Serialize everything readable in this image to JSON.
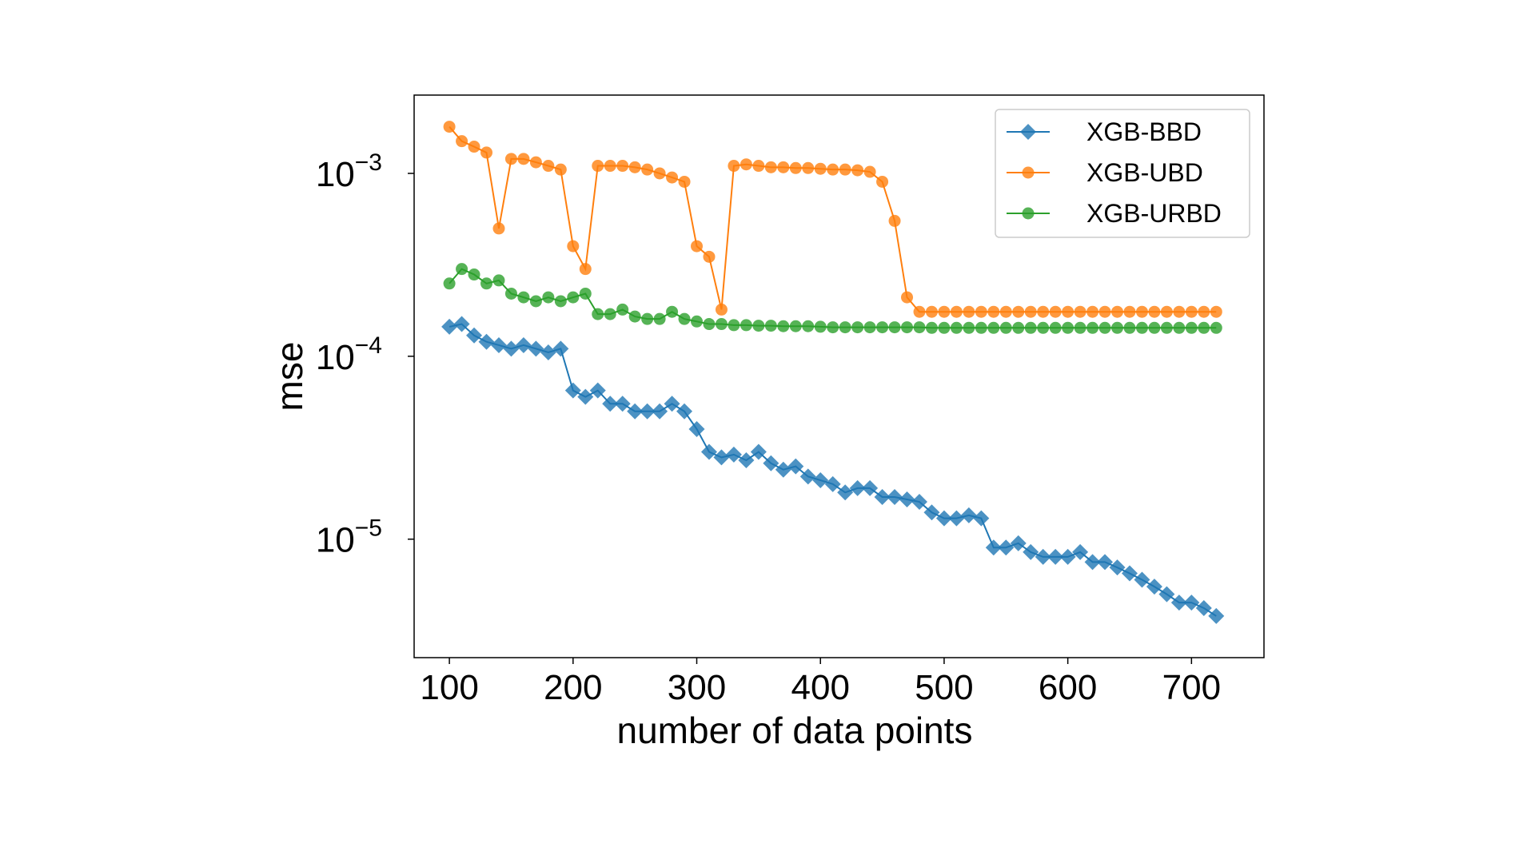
{
  "chart_data": {
    "type": "line",
    "xlabel": "number of data points",
    "ylabel": "mse",
    "log_y": true,
    "legend_position": "upper right",
    "xlim": [
      71.5,
      758.6
    ],
    "xticks": [
      100,
      200,
      300,
      400,
      500,
      600,
      700
    ],
    "ylim": [
      2.25e-06,
      0.00268
    ],
    "yticks": [
      {
        "value": 0.001,
        "label": "10",
        "exponent": "−3"
      },
      {
        "value": 0.0001,
        "label": "10",
        "exponent": "−4"
      },
      {
        "value": 1e-05,
        "label": "10",
        "exponent": "−5"
      }
    ],
    "x": [
      100,
      110,
      120,
      130,
      140,
      150,
      160,
      170,
      180,
      190,
      200,
      210,
      220,
      230,
      240,
      250,
      260,
      270,
      280,
      290,
      300,
      310,
      320,
      330,
      340,
      350,
      360,
      370,
      380,
      390,
      400,
      410,
      420,
      430,
      440,
      450,
      460,
      470,
      480,
      490,
      500,
      510,
      520,
      530,
      540,
      550,
      560,
      570,
      580,
      590,
      600,
      610,
      620,
      630,
      640,
      650,
      660,
      670,
      680,
      690,
      700,
      710,
      720
    ],
    "series": [
      {
        "name": "XGB-BBD",
        "color": "#1f77b4",
        "marker": "diamond",
        "values": [
          0.000145,
          0.00015,
          0.00013,
          0.00012,
          0.000115,
          0.00011,
          0.000115,
          0.00011,
          0.000105,
          0.00011,
          6.5e-05,
          6e-05,
          6.5e-05,
          5.5e-05,
          5.5e-05,
          5e-05,
          5e-05,
          5e-05,
          5.5e-05,
          5e-05,
          4e-05,
          3e-05,
          2.8e-05,
          2.9e-05,
          2.7e-05,
          3e-05,
          2.6e-05,
          2.4e-05,
          2.5e-05,
          2.2e-05,
          2.1e-05,
          2e-05,
          1.8e-05,
          1.9e-05,
          1.9e-05,
          1.7e-05,
          1.7e-05,
          1.65e-05,
          1.6e-05,
          1.4e-05,
          1.3e-05,
          1.3e-05,
          1.35e-05,
          1.3e-05,
          9e-06,
          9e-06,
          9.5e-06,
          8.5e-06,
          8e-06,
          8e-06,
          8e-06,
          8.5e-06,
          7.5e-06,
          7.5e-06,
          7e-06,
          6.5e-06,
          6e-06,
          5.5e-06,
          5e-06,
          4.5e-06,
          4.5e-06,
          4.2e-06,
          3.8e-06
        ]
      },
      {
        "name": "XGB-UBD",
        "color": "#ff7f0e",
        "marker": "circle",
        "values": [
          0.0018,
          0.0015,
          0.0014,
          0.0013,
          0.0005,
          0.0012,
          0.0012,
          0.00115,
          0.0011,
          0.00105,
          0.0004,
          0.0003,
          0.0011,
          0.0011,
          0.0011,
          0.00108,
          0.00105,
          0.001,
          0.00095,
          0.0009,
          0.0004,
          0.00035,
          0.00018,
          0.0011,
          0.00112,
          0.0011,
          0.00108,
          0.00108,
          0.00107,
          0.00107,
          0.00106,
          0.00105,
          0.00105,
          0.00104,
          0.00102,
          0.0009,
          0.00055,
          0.00021,
          0.000175,
          0.000175,
          0.000175,
          0.000175,
          0.000175,
          0.000175,
          0.000175,
          0.000175,
          0.000175,
          0.000175,
          0.000175,
          0.000175,
          0.000175,
          0.000175,
          0.000175,
          0.000175,
          0.000175,
          0.000175,
          0.000175,
          0.000175,
          0.000175,
          0.000175,
          0.000175,
          0.000175,
          0.000175
        ]
      },
      {
        "name": "XGB-URBD",
        "color": "#2ca02c",
        "marker": "circle",
        "values": [
          0.00025,
          0.0003,
          0.00028,
          0.00025,
          0.00026,
          0.00022,
          0.00021,
          0.0002,
          0.00021,
          0.0002,
          0.00021,
          0.00022,
          0.00017,
          0.00017,
          0.00018,
          0.000165,
          0.00016,
          0.00016,
          0.000175,
          0.00016,
          0.000155,
          0.00015,
          0.00015,
          0.000148,
          0.000148,
          0.000147,
          0.000147,
          0.000146,
          0.000146,
          0.000146,
          0.000145,
          0.000144,
          0.000144,
          0.000144,
          0.000144,
          0.000144,
          0.000144,
          0.000144,
          0.000144,
          0.000143,
          0.000143,
          0.000143,
          0.000143,
          0.000143,
          0.000143,
          0.000143,
          0.000143,
          0.000143,
          0.000143,
          0.000143,
          0.000143,
          0.000143,
          0.000143,
          0.000143,
          0.000143,
          0.000143,
          0.000143,
          0.000143,
          0.000143,
          0.000143,
          0.000143,
          0.000143,
          0.000143
        ]
      }
    ]
  }
}
